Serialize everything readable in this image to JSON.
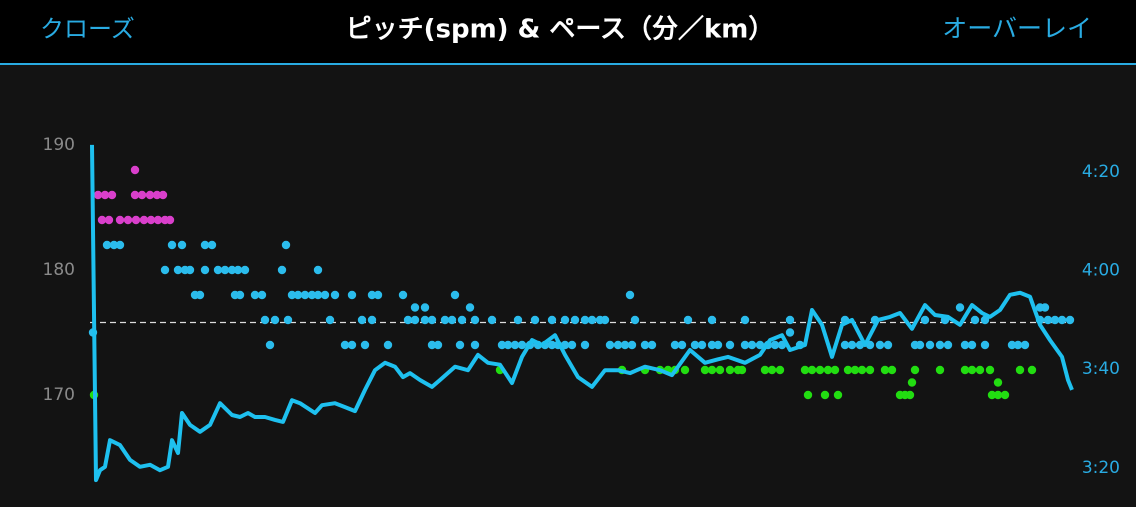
{
  "header": {
    "left": "クローズ",
    "right": "オーバーレイ"
  },
  "chart_data": {
    "type": "scatter",
    "title": "ピッチ(spm) & ペース（分／km）",
    "xlim": [
      0,
      982
    ],
    "ylim": [
      162.8,
      190.4
    ],
    "yticks": [
      170,
      180,
      190
    ],
    "y2lim": [
      196.5,
      266.5
    ],
    "y2ticks": [
      {
        "value": 200,
        "label": "3:20"
      },
      {
        "value": 220,
        "label": "3:40"
      },
      {
        "value": 240,
        "label": "4:00"
      },
      {
        "value": 260,
        "label": "4:20"
      }
    ],
    "average_line": 175.8,
    "series": [
      {
        "color": "#d93fcb",
        "x": [
          8,
          15,
          22,
          45,
          52,
          60,
          67,
          73,
          12,
          19,
          30,
          38,
          46,
          54,
          61,
          68,
          75,
          80,
          45
        ],
        "values": [
          186,
          186,
          186,
          186,
          186,
          186,
          186,
          186,
          184,
          184,
          184,
          184,
          184,
          184,
          184,
          184,
          184,
          184,
          188
        ]
      },
      {
        "color": "#2bbcec",
        "x": [
          17,
          24,
          30,
          82,
          92,
          115,
          122,
          196,
          75,
          88,
          95,
          100,
          115,
          128,
          135,
          142,
          148,
          155,
          192,
          228,
          105,
          110,
          145,
          150,
          165,
          172,
          202,
          208,
          215,
          222,
          228,
          235,
          245,
          262,
          282,
          288,
          313,
          365,
          540,
          325,
          335,
          380,
          870,
          950,
          955,
          175,
          185,
          198,
          240,
          272,
          282,
          318,
          325,
          335,
          342,
          355,
          362,
          372,
          385,
          402,
          428,
          445,
          462,
          475,
          485,
          495,
          502,
          510,
          515,
          545,
          598,
          622,
          655,
          700,
          755,
          785,
          835,
          855,
          885,
          895,
          950,
          958,
          965,
          972,
          980,
          700,
          3,
          180,
          255,
          262,
          275,
          298,
          342,
          348,
          370,
          385,
          412,
          418,
          425,
          432,
          440,
          448,
          455,
          462,
          468,
          475,
          482,
          495,
          520,
          528,
          535,
          542,
          555,
          562,
          585,
          592,
          605,
          612,
          622,
          628,
          640,
          655,
          662,
          670,
          678,
          685,
          692,
          710,
          755,
          762,
          770,
          780,
          790,
          798,
          825,
          830,
          840,
          850,
          858,
          875,
          882,
          895,
          922,
          928,
          935
        ],
        "values": [
          182,
          182,
          182,
          182,
          182,
          182,
          182,
          182,
          180,
          180,
          180,
          180,
          180,
          180,
          180,
          180,
          180,
          180,
          180,
          180,
          178,
          178,
          178,
          178,
          178,
          178,
          178,
          178,
          178,
          178,
          178,
          178,
          178,
          178,
          178,
          178,
          178,
          178,
          178,
          177,
          177,
          177,
          177,
          177,
          177,
          176,
          176,
          176,
          176,
          176,
          176,
          176,
          176,
          176,
          176,
          176,
          176,
          176,
          176,
          176,
          176,
          176,
          176,
          176,
          176,
          176,
          176,
          176,
          176,
          176,
          176,
          176,
          176,
          176,
          176,
          176,
          176,
          176,
          176,
          176,
          176,
          176,
          176,
          176,
          176,
          175,
          175,
          174,
          174,
          174,
          174,
          174,
          174,
          174,
          174,
          174,
          174,
          174,
          174,
          174,
          174,
          174,
          174,
          174,
          174,
          174,
          174,
          174,
          174,
          174,
          174,
          174,
          174,
          174,
          174,
          174,
          174,
          174,
          174,
          174,
          174,
          174,
          174,
          174,
          174,
          174,
          174,
          174,
          174,
          174,
          174,
          174,
          174,
          174,
          174,
          174,
          174,
          174,
          174,
          174,
          174,
          174,
          174,
          174,
          174
        ]
      },
      {
        "color": "#22dd11",
        "x": [
          4,
          410,
          532,
          555,
          570,
          578,
          585,
          595,
          615,
          622,
          630,
          640,
          648,
          652,
          675,
          682,
          690,
          715,
          722,
          730,
          738,
          745,
          758,
          765,
          772,
          780,
          795,
          802,
          825,
          850,
          875,
          882,
          890,
          900,
          930,
          942,
          822,
          908,
          718,
          735,
          748,
          810,
          815,
          820,
          902,
          908,
          915
        ],
        "values": [
          170,
          172,
          172,
          172,
          172,
          172,
          172,
          172,
          172,
          172,
          172,
          172,
          172,
          172,
          172,
          172,
          172,
          172,
          172,
          172,
          172,
          172,
          172,
          172,
          172,
          172,
          172,
          172,
          172,
          172,
          172,
          172,
          172,
          172,
          172,
          172,
          171,
          171,
          170,
          170,
          170,
          170,
          170,
          170,
          170,
          170,
          170
        ]
      },
      {
        "type": "line",
        "axis": "y2",
        "color": "#1ec0ef",
        "x": [
          2,
          6,
          10,
          15,
          20,
          30,
          40,
          50,
          60,
          70,
          78,
          82,
          88,
          92,
          100,
          110,
          120,
          130,
          142,
          150,
          158,
          165,
          175,
          185,
          193,
          202,
          210,
          225,
          232,
          245,
          255,
          265,
          275,
          285,
          295,
          305,
          313,
          320,
          330,
          342,
          350,
          365,
          378,
          388,
          398,
          410,
          422,
          432,
          442,
          452,
          465,
          475,
          488,
          502,
          515,
          528,
          540,
          555,
          570,
          582,
          600,
          615,
          628,
          638,
          655,
          670,
          680,
          692,
          700,
          715,
          722,
          732,
          742,
          752,
          762,
          775,
          788,
          800,
          810,
          822,
          835,
          845,
          858,
          870,
          882,
          892,
          900,
          910,
          920,
          930,
          940,
          950,
          960,
          972,
          978,
          982
        ],
        "values": [
          265.5,
          197.5,
          199.5,
          200.2,
          205.6,
          204.6,
          201.6,
          200.2,
          200.6,
          199.5,
          200.2,
          205.6,
          203,
          211.1,
          208.7,
          207.3,
          208.7,
          213.1,
          210.7,
          210.3,
          211.1,
          210.3,
          210.3,
          209.7,
          209.3,
          213.7,
          213.1,
          211.1,
          212.7,
          213.1,
          212.3,
          211.5,
          215.8,
          219.8,
          221.3,
          220.5,
          218.4,
          219.2,
          217.8,
          216.4,
          217.8,
          220.5,
          219.8,
          222.9,
          221.3,
          220.9,
          217.2,
          222.5,
          225.9,
          224.9,
          226.9,
          222.9,
          218.4,
          216.4,
          219.8,
          219.8,
          219.2,
          220.5,
          219.8,
          218.8,
          223.9,
          221.3,
          222,
          222.5,
          221.3,
          222.9,
          225.9,
          226.9,
          223.9,
          224.9,
          232,
          229,
          222.5,
          229,
          230,
          224.9,
          230,
          230.6,
          231.4,
          228.2,
          233,
          231,
          230.6,
          229,
          233,
          231.4,
          230.6,
          232,
          235.1,
          235.5,
          234.7,
          229,
          225.9,
          222.5,
          217.8,
          215.8
        ]
      }
    ]
  }
}
